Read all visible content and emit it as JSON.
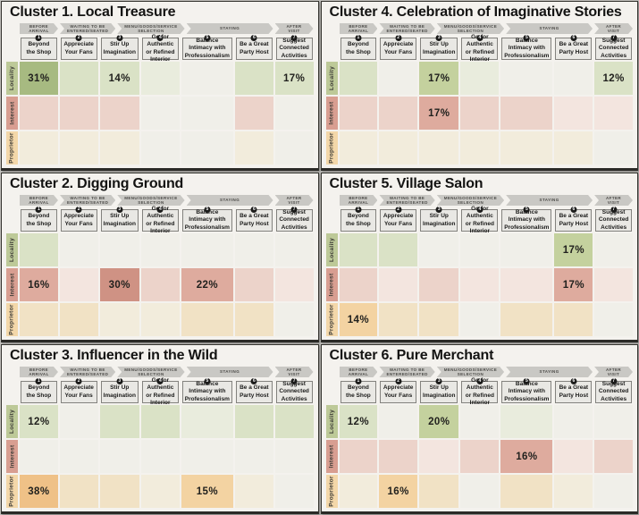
{
  "page": {
    "background": "#c6c5c1",
    "panel_background": "#f4f2ee"
  },
  "palette": {
    "g3": "#a7ba81",
    "g2": "#c4d19e",
    "g1": "#dae2c6",
    "g0": "#e9ecdd",
    "p3": "#cf9284",
    "p2": "#deab9e",
    "p1": "#ecd3ca",
    "p0": "#f3e5df",
    "o3": "#efc187",
    "o2": "#f3d3a2",
    "o1": "#f1e2c5",
    "o0": "#f2ecdc",
    "n": "#f0efe9",
    "row_locality": "#bdc998",
    "row_interest": "#d89e91",
    "row_proprietor": "#f3d7a9",
    "arrow": "#c9c8c4",
    "header_box": "#e9e8e4",
    "header_border": "#83827e"
  },
  "shared": {
    "stages": [
      {
        "label": "BEFORE ARRIVAL",
        "span": 1
      },
      {
        "label": "WAITING TO BE ENTERED/SEATED",
        "span": 1
      },
      {
        "label": "MENU/GOODS/SERVICE SELECTION",
        "span": 1
      },
      {
        "label": "STAYING",
        "span": 3
      },
      {
        "label": "AFTER VISIT",
        "span": 1
      }
    ],
    "columns": [
      {
        "num": "1",
        "label": "Beyond the Shop"
      },
      {
        "num": "2",
        "label": "Appreciate Your Fans"
      },
      {
        "num": "3",
        "label": "Stir Up Imagination"
      },
      {
        "num": "4",
        "label": "Go for Authentic or Refined Interior"
      },
      {
        "num": "5",
        "label": "Balance Intimacy with Professionalism"
      },
      {
        "num": "6",
        "label": "Be a Great Party Host"
      },
      {
        "num": "7",
        "label": "Suggest Connected Activities"
      }
    ],
    "rows": [
      "Locality",
      "Interest",
      "Proprietor"
    ],
    "row_colors": [
      "row_locality",
      "row_interest",
      "row_proprietor"
    ]
  },
  "panels": [
    {
      "title": "Cluster 1. Local Treasure",
      "cells": [
        [
          {
            "v": "31%",
            "c": "g3"
          },
          {
            "v": "",
            "c": "g1"
          },
          {
            "v": "14%",
            "c": "g1"
          },
          {
            "v": "",
            "c": "g0"
          },
          {
            "v": "",
            "c": "n"
          },
          {
            "v": "",
            "c": "g1"
          },
          {
            "v": "17%",
            "c": "g1"
          }
        ],
        [
          {
            "v": "",
            "c": "p1"
          },
          {
            "v": "",
            "c": "p1"
          },
          {
            "v": "",
            "c": "p1"
          },
          {
            "v": "",
            "c": "n"
          },
          {
            "v": "",
            "c": "n"
          },
          {
            "v": "",
            "c": "p1"
          },
          {
            "v": "",
            "c": "n"
          }
        ],
        [
          {
            "v": "",
            "c": "o0"
          },
          {
            "v": "",
            "c": "o0"
          },
          {
            "v": "",
            "c": "o0"
          },
          {
            "v": "",
            "c": "n"
          },
          {
            "v": "",
            "c": "n"
          },
          {
            "v": "",
            "c": "o0"
          },
          {
            "v": "",
            "c": "n"
          }
        ]
      ]
    },
    {
      "title": "Cluster 4. Celebration of Imaginative Stories",
      "cells": [
        [
          {
            "v": "",
            "c": "g1"
          },
          {
            "v": "",
            "c": "n"
          },
          {
            "v": "17%",
            "c": "g2"
          },
          {
            "v": "",
            "c": "g0"
          },
          {
            "v": "",
            "c": "n"
          },
          {
            "v": "",
            "c": "n"
          },
          {
            "v": "12%",
            "c": "g1"
          }
        ],
        [
          {
            "v": "",
            "c": "p1"
          },
          {
            "v": "",
            "c": "p1"
          },
          {
            "v": "17%",
            "c": "p2"
          },
          {
            "v": "",
            "c": "p1"
          },
          {
            "v": "",
            "c": "p1"
          },
          {
            "v": "",
            "c": "p0"
          },
          {
            "v": "",
            "c": "p0"
          }
        ],
        [
          {
            "v": "",
            "c": "o0"
          },
          {
            "v": "",
            "c": "o0"
          },
          {
            "v": "",
            "c": "o0"
          },
          {
            "v": "",
            "c": "o0"
          },
          {
            "v": "",
            "c": "o0"
          },
          {
            "v": "",
            "c": "o0"
          },
          {
            "v": "",
            "c": "n"
          }
        ]
      ]
    },
    {
      "title": "Cluster 2. Digging Ground",
      "cells": [
        [
          {
            "v": "",
            "c": "g1"
          },
          {
            "v": "",
            "c": "n"
          },
          {
            "v": "",
            "c": "n"
          },
          {
            "v": "",
            "c": "n"
          },
          {
            "v": "",
            "c": "n"
          },
          {
            "v": "",
            "c": "n"
          },
          {
            "v": "",
            "c": "n"
          }
        ],
        [
          {
            "v": "16%",
            "c": "p2"
          },
          {
            "v": "",
            "c": "p0"
          },
          {
            "v": "30%",
            "c": "p3"
          },
          {
            "v": "",
            "c": "p1"
          },
          {
            "v": "22%",
            "c": "p2"
          },
          {
            "v": "",
            "c": "p1"
          },
          {
            "v": "",
            "c": "p0"
          }
        ],
        [
          {
            "v": "",
            "c": "o1"
          },
          {
            "v": "",
            "c": "o1"
          },
          {
            "v": "",
            "c": "o0"
          },
          {
            "v": "",
            "c": "o0"
          },
          {
            "v": "",
            "c": "o1"
          },
          {
            "v": "",
            "c": "o1"
          },
          {
            "v": "",
            "c": "n"
          }
        ]
      ]
    },
    {
      "title": "Cluster 5. Village Salon",
      "cells": [
        [
          {
            "v": "",
            "c": "g1"
          },
          {
            "v": "",
            "c": "g1"
          },
          {
            "v": "",
            "c": "n"
          },
          {
            "v": "",
            "c": "n"
          },
          {
            "v": "",
            "c": "n"
          },
          {
            "v": "17%",
            "c": "g2"
          },
          {
            "v": "",
            "c": "n"
          }
        ],
        [
          {
            "v": "",
            "c": "p1"
          },
          {
            "v": "",
            "c": "p0"
          },
          {
            "v": "",
            "c": "p1"
          },
          {
            "v": "",
            "c": "p0"
          },
          {
            "v": "",
            "c": "p0"
          },
          {
            "v": "17%",
            "c": "p2"
          },
          {
            "v": "",
            "c": "p0"
          }
        ],
        [
          {
            "v": "14%",
            "c": "o2"
          },
          {
            "v": "",
            "c": "o1"
          },
          {
            "v": "",
            "c": "o1"
          },
          {
            "v": "",
            "c": "n"
          },
          {
            "v": "",
            "c": "o1"
          },
          {
            "v": "",
            "c": "o1"
          },
          {
            "v": "",
            "c": "n"
          }
        ]
      ]
    },
    {
      "title": "Cluster 3. Influencer in the Wild",
      "cells": [
        [
          {
            "v": "12%",
            "c": "g1"
          },
          {
            "v": "",
            "c": "n"
          },
          {
            "v": "",
            "c": "g1"
          },
          {
            "v": "",
            "c": "g1"
          },
          {
            "v": "",
            "c": "g0"
          },
          {
            "v": "",
            "c": "g1"
          },
          {
            "v": "",
            "c": "g1"
          }
        ],
        [
          {
            "v": "",
            "c": "n"
          },
          {
            "v": "",
            "c": "n"
          },
          {
            "v": "",
            "c": "n"
          },
          {
            "v": "",
            "c": "n"
          },
          {
            "v": "",
            "c": "n"
          },
          {
            "v": "",
            "c": "n"
          },
          {
            "v": "",
            "c": "n"
          }
        ],
        [
          {
            "v": "38%",
            "c": "o3"
          },
          {
            "v": "",
            "c": "o1"
          },
          {
            "v": "",
            "c": "o1"
          },
          {
            "v": "",
            "c": "o0"
          },
          {
            "v": "15%",
            "c": "o2"
          },
          {
            "v": "",
            "c": "o0"
          },
          {
            "v": "",
            "c": "n"
          }
        ]
      ]
    },
    {
      "title": "Cluster 6. Pure Merchant",
      "cells": [
        [
          {
            "v": "12%",
            "c": "g1"
          },
          {
            "v": "",
            "c": "n"
          },
          {
            "v": "20%",
            "c": "g2"
          },
          {
            "v": "",
            "c": "n"
          },
          {
            "v": "",
            "c": "g0"
          },
          {
            "v": "",
            "c": "n"
          },
          {
            "v": "",
            "c": "n"
          }
        ],
        [
          {
            "v": "",
            "c": "p1"
          },
          {
            "v": "",
            "c": "p1"
          },
          {
            "v": "",
            "c": "p0"
          },
          {
            "v": "",
            "c": "p1"
          },
          {
            "v": "16%",
            "c": "p2"
          },
          {
            "v": "",
            "c": "p0"
          },
          {
            "v": "",
            "c": "p1"
          }
        ],
        [
          {
            "v": "",
            "c": "o0"
          },
          {
            "v": "16%",
            "c": "o2"
          },
          {
            "v": "",
            "c": "o1"
          },
          {
            "v": "",
            "c": "n"
          },
          {
            "v": "",
            "c": "o1"
          },
          {
            "v": "",
            "c": "o0"
          },
          {
            "v": "",
            "c": "n"
          }
        ]
      ]
    }
  ],
  "chart_data": [
    {
      "type": "heatmap",
      "title": "Cluster 1. Local Treasure",
      "rows": [
        "Locality",
        "Interest",
        "Proprietor"
      ],
      "columns": [
        "Beyond the Shop",
        "Appreciate Your Fans",
        "Stir Up Imagination",
        "Go for Authentic or Refined Interior",
        "Balance Intimacy with Professionalism",
        "Be a Great Party Host",
        "Suggest Connected Activities"
      ],
      "values_pct": [
        [
          31,
          null,
          14,
          null,
          null,
          null,
          17
        ],
        [
          null,
          null,
          null,
          null,
          null,
          null,
          null
        ],
        [
          null,
          null,
          null,
          null,
          null,
          null,
          null
        ]
      ]
    },
    {
      "type": "heatmap",
      "title": "Cluster 2. Digging Ground",
      "rows": [
        "Locality",
        "Interest",
        "Proprietor"
      ],
      "values_pct": [
        [
          null,
          null,
          null,
          null,
          null,
          null,
          null
        ],
        [
          16,
          null,
          30,
          null,
          22,
          null,
          null
        ],
        [
          null,
          null,
          null,
          null,
          null,
          null,
          null
        ]
      ]
    },
    {
      "type": "heatmap",
      "title": "Cluster 3. Influencer in the Wild",
      "rows": [
        "Locality",
        "Interest",
        "Proprietor"
      ],
      "values_pct": [
        [
          12,
          null,
          null,
          null,
          null,
          null,
          null
        ],
        [
          null,
          null,
          null,
          null,
          null,
          null,
          null
        ],
        [
          38,
          null,
          null,
          null,
          15,
          null,
          null
        ]
      ]
    },
    {
      "type": "heatmap",
      "title": "Cluster 4. Celebration of Imaginative Stories",
      "rows": [
        "Locality",
        "Interest",
        "Proprietor"
      ],
      "values_pct": [
        [
          null,
          null,
          17,
          null,
          null,
          null,
          12
        ],
        [
          null,
          null,
          17,
          null,
          null,
          null,
          null
        ],
        [
          null,
          null,
          null,
          null,
          null,
          null,
          null
        ]
      ]
    },
    {
      "type": "heatmap",
      "title": "Cluster 5. Village Salon",
      "rows": [
        "Locality",
        "Interest",
        "Proprietor"
      ],
      "values_pct": [
        [
          null,
          null,
          null,
          null,
          null,
          17,
          null
        ],
        [
          null,
          null,
          null,
          null,
          null,
          17,
          null
        ],
        [
          14,
          null,
          null,
          null,
          null,
          null,
          null
        ]
      ]
    },
    {
      "type": "heatmap",
      "title": "Cluster 6. Pure Merchant",
      "rows": [
        "Locality",
        "Interest",
        "Proprietor"
      ],
      "values_pct": [
        [
          12,
          null,
          20,
          null,
          null,
          null,
          null
        ],
        [
          null,
          null,
          null,
          null,
          16,
          null,
          null
        ],
        [
          null,
          16,
          null,
          null,
          null,
          null,
          null
        ]
      ]
    }
  ]
}
